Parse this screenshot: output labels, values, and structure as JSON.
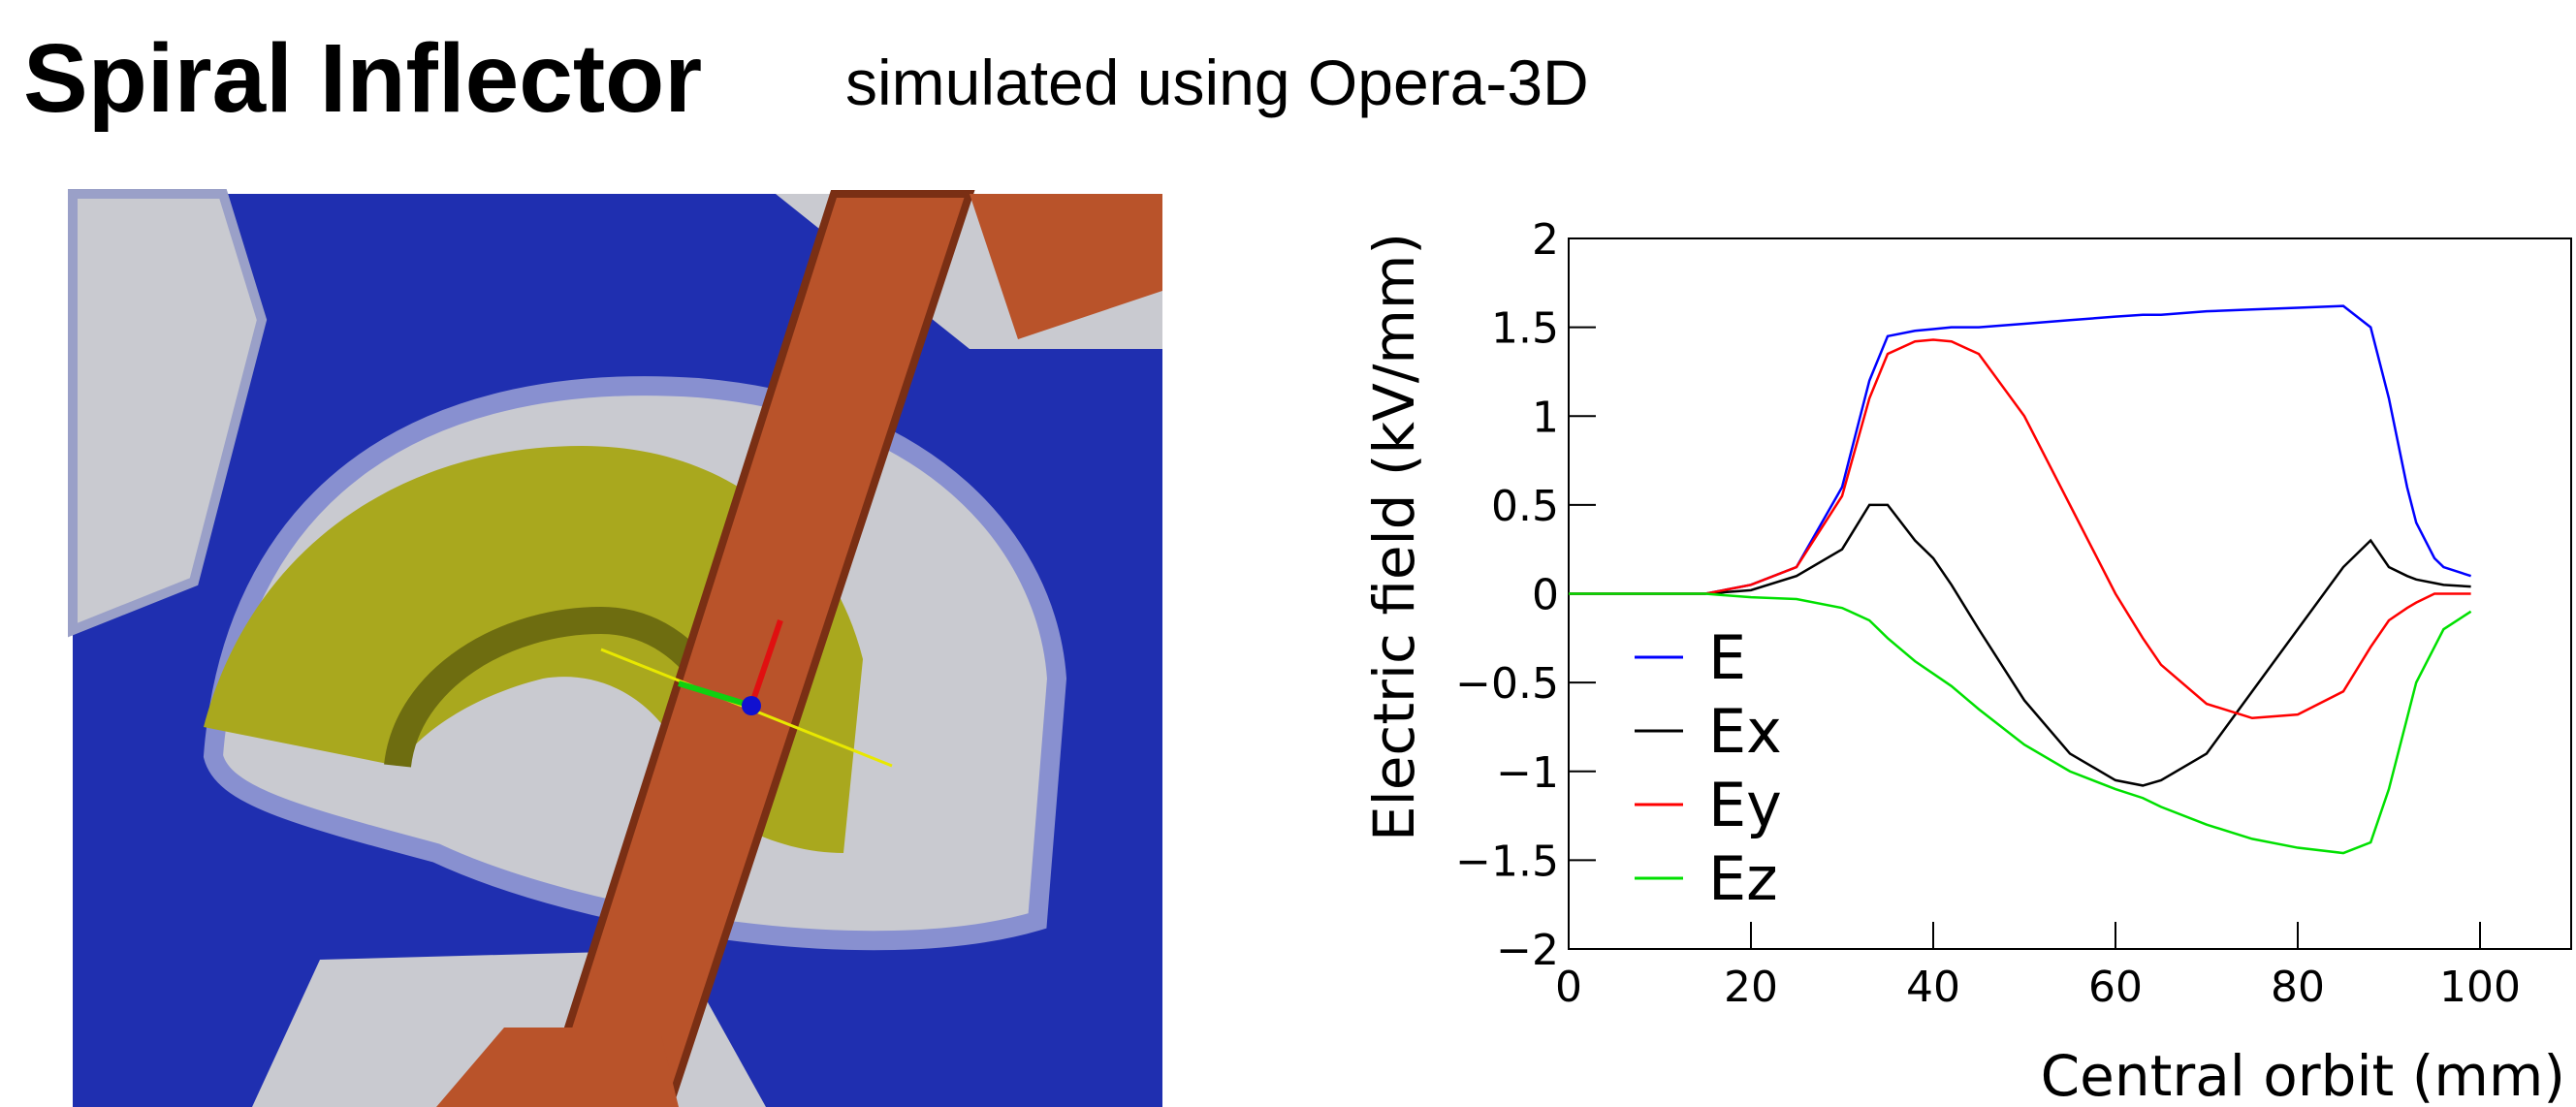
{
  "slide": {
    "title": "Spiral Inflector",
    "subtitle": "simulated using Opera-3D"
  },
  "chart_data": {
    "type": "line",
    "xlabel": "Central orbit (mm)",
    "ylabel": "Electric field (kV/mm)",
    "x": [
      0,
      10,
      15,
      20,
      25,
      30,
      33,
      35,
      38,
      40,
      42,
      45,
      50,
      55,
      60,
      63,
      65,
      70,
      75,
      80,
      85,
      88,
      90,
      92,
      93,
      95,
      96,
      99
    ],
    "series": [
      {
        "name": "E",
        "color": "#0000ff",
        "values": [
          0,
          0,
          0,
          0.05,
          0.15,
          0.6,
          1.2,
          1.45,
          1.48,
          1.49,
          1.5,
          1.5,
          1.52,
          1.54,
          1.56,
          1.57,
          1.57,
          1.59,
          1.6,
          1.61,
          1.62,
          1.5,
          1.1,
          0.6,
          0.4,
          0.2,
          0.15,
          0.1
        ]
      },
      {
        "name": "Ex",
        "color": "#000000",
        "values": [
          0,
          0,
          0,
          0.02,
          0.1,
          0.25,
          0.5,
          0.5,
          0.3,
          0.2,
          0.05,
          -0.2,
          -0.6,
          -0.9,
          -1.05,
          -1.08,
          -1.05,
          -0.9,
          -0.55,
          -0.2,
          0.15,
          0.3,
          0.15,
          0.1,
          0.08,
          0.06,
          0.05,
          0.04
        ]
      },
      {
        "name": "Ey",
        "color": "#ff0000",
        "values": [
          0,
          0,
          0,
          0.05,
          0.15,
          0.55,
          1.1,
          1.35,
          1.42,
          1.43,
          1.42,
          1.35,
          1.0,
          0.5,
          0.0,
          -0.25,
          -0.4,
          -0.62,
          -0.7,
          -0.68,
          -0.55,
          -0.3,
          -0.15,
          -0.08,
          -0.05,
          0.0,
          0.0,
          0.0
        ]
      },
      {
        "name": "Ez",
        "color": "#00e000",
        "values": [
          0,
          0,
          0,
          -0.02,
          -0.03,
          -0.08,
          -0.15,
          -0.25,
          -0.38,
          -0.45,
          -0.52,
          -0.65,
          -0.85,
          -1.0,
          -1.1,
          -1.15,
          -1.2,
          -1.3,
          -1.38,
          -1.43,
          -1.46,
          -1.4,
          -1.1,
          -0.7,
          -0.5,
          -0.3,
          -0.2,
          -0.1
        ]
      }
    ],
    "xlim": [
      0,
      110
    ],
    "ylim": [
      -2,
      2
    ],
    "xticks": [
      0,
      20,
      40,
      60,
      80,
      100
    ],
    "yticks": [
      {
        "value": -2,
        "label": "−2"
      },
      {
        "value": -1.5,
        "label": "−1.5"
      },
      {
        "value": -1,
        "label": "−1"
      },
      {
        "value": -0.5,
        "label": "−0.5"
      },
      0,
      0.5,
      1,
      1.5,
      2
    ],
    "legend": "lower-left"
  }
}
